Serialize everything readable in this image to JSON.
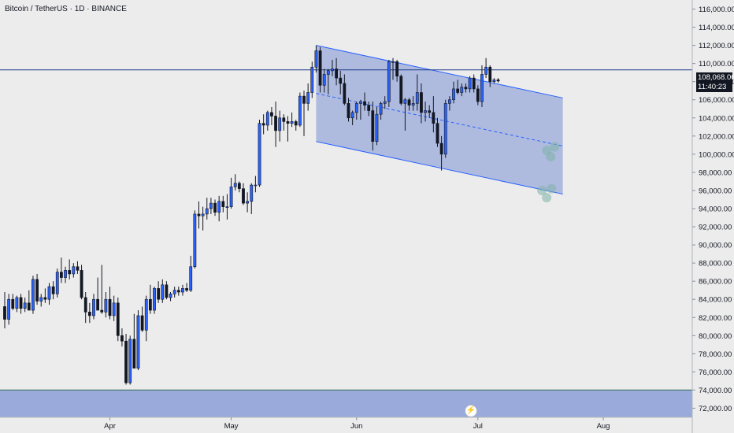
{
  "header": {
    "symbol_title": "Bitcoin / TetherUS · 1D · BINANCE"
  },
  "price_badge": {
    "price": "108,068.06",
    "countdown": "11:40:23"
  },
  "colors": {
    "background": "#ececec",
    "candle_up": "#2962ff",
    "candle_down": "#131722",
    "channel_fill": "#9aabdb",
    "channel_line": "#2962ff",
    "horizontal_line": "#1e3a8a",
    "zone_fill": "#9aabdb",
    "axis_text": "#131722"
  },
  "icons": {
    "bolt": "bolt-icon"
  },
  "chart_data": {
    "type": "candlestick",
    "y_axis": {
      "range": [
        71000,
        117000
      ],
      "ticks": [
        72000,
        74000,
        76000,
        78000,
        80000,
        82000,
        84000,
        86000,
        88000,
        90000,
        92000,
        94000,
        96000,
        98000,
        100000,
        102000,
        104000,
        106000,
        108000,
        110000,
        112000,
        114000,
        116000
      ],
      "tick_labels": [
        "72,000.00",
        "74,000.00",
        "76,000.00",
        "78,000.00",
        "80,000.00",
        "82,000.00",
        "84,000.00",
        "86,000.00",
        "88,000.00",
        "90,000.00",
        "92,000.00",
        "94,000.00",
        "96,000.00",
        "98,000.00",
        "100,000.00",
        "102,000.00",
        "104,000.00",
        "106,000.00",
        "108,000.00",
        "110,000.00",
        "112,000.00",
        "114,000.00",
        "116,000.00"
      ]
    },
    "x_axis": {
      "range": [
        "2025-03-06",
        "2025-08-23"
      ],
      "ticks": [
        {
          "date": "2025-04-01",
          "label": "Apr"
        },
        {
          "date": "2025-05-01",
          "label": "May"
        },
        {
          "date": "2025-06-01",
          "label": "Jun"
        },
        {
          "date": "2025-07-01",
          "label": "Jul"
        },
        {
          "date": "2025-08-01",
          "label": "Aug"
        }
      ]
    },
    "candles": [
      {
        "d": "2025-03-06",
        "o": 83200,
        "h": 84800,
        "l": 80800,
        "c": 81800
      },
      {
        "d": "2025-03-07",
        "o": 81800,
        "h": 84600,
        "l": 81200,
        "c": 84000
      },
      {
        "d": "2025-03-08",
        "o": 84000,
        "h": 84600,
        "l": 82800,
        "c": 83000
      },
      {
        "d": "2025-03-09",
        "o": 83000,
        "h": 84400,
        "l": 82600,
        "c": 84200
      },
      {
        "d": "2025-03-10",
        "o": 84200,
        "h": 84600,
        "l": 82400,
        "c": 83000
      },
      {
        "d": "2025-03-11",
        "o": 83000,
        "h": 84200,
        "l": 82600,
        "c": 83600
      },
      {
        "d": "2025-03-12",
        "o": 83600,
        "h": 85000,
        "l": 82800,
        "c": 82800
      },
      {
        "d": "2025-03-13",
        "o": 82800,
        "h": 86600,
        "l": 82400,
        "c": 86200
      },
      {
        "d": "2025-03-14",
        "o": 86200,
        "h": 86800,
        "l": 83400,
        "c": 83800
      },
      {
        "d": "2025-03-15",
        "o": 83800,
        "h": 84600,
        "l": 83200,
        "c": 84200
      },
      {
        "d": "2025-03-16",
        "o": 84200,
        "h": 85200,
        "l": 83600,
        "c": 84000
      },
      {
        "d": "2025-03-17",
        "o": 84000,
        "h": 85800,
        "l": 83400,
        "c": 85400
      },
      {
        "d": "2025-03-18",
        "o": 85400,
        "h": 86000,
        "l": 84000,
        "c": 84600
      },
      {
        "d": "2025-03-19",
        "o": 84600,
        "h": 87400,
        "l": 84200,
        "c": 87000
      },
      {
        "d": "2025-03-20",
        "o": 87000,
        "h": 88600,
        "l": 85800,
        "c": 86400
      },
      {
        "d": "2025-03-21",
        "o": 86400,
        "h": 87600,
        "l": 85800,
        "c": 87200
      },
      {
        "d": "2025-03-22",
        "o": 87200,
        "h": 88400,
        "l": 86200,
        "c": 86800
      },
      {
        "d": "2025-03-23",
        "o": 86800,
        "h": 88000,
        "l": 86400,
        "c": 87600
      },
      {
        "d": "2025-03-24",
        "o": 87600,
        "h": 88200,
        "l": 86800,
        "c": 87200
      },
      {
        "d": "2025-03-25",
        "o": 87200,
        "h": 87800,
        "l": 84000,
        "c": 84200
      },
      {
        "d": "2025-03-26",
        "o": 84200,
        "h": 84800,
        "l": 81400,
        "c": 82600
      },
      {
        "d": "2025-03-27",
        "o": 82600,
        "h": 83600,
        "l": 81400,
        "c": 82200
      },
      {
        "d": "2025-03-28",
        "o": 82200,
        "h": 84600,
        "l": 81800,
        "c": 84000
      },
      {
        "d": "2025-03-29",
        "o": 84000,
        "h": 86400,
        "l": 82800,
        "c": 82800
      },
      {
        "d": "2025-03-30",
        "o": 82800,
        "h": 87800,
        "l": 82400,
        "c": 82600
      },
      {
        "d": "2025-03-31",
        "o": 82600,
        "h": 84800,
        "l": 82000,
        "c": 84000
      },
      {
        "d": "2025-04-01",
        "o": 84000,
        "h": 85400,
        "l": 81800,
        "c": 82200
      },
      {
        "d": "2025-04-02",
        "o": 82200,
        "h": 84400,
        "l": 81600,
        "c": 83600
      },
      {
        "d": "2025-04-03",
        "o": 83600,
        "h": 84200,
        "l": 79400,
        "c": 80000
      },
      {
        "d": "2025-04-04",
        "o": 80000,
        "h": 80800,
        "l": 78800,
        "c": 79400
      },
      {
        "d": "2025-04-05",
        "o": 79400,
        "h": 80200,
        "l": 74600,
        "c": 74800
      },
      {
        "d": "2025-04-06",
        "o": 74800,
        "h": 80000,
        "l": 74600,
        "c": 79600
      },
      {
        "d": "2025-04-07",
        "o": 79600,
        "h": 82400,
        "l": 76400,
        "c": 76400
      },
      {
        "d": "2025-04-08",
        "o": 76400,
        "h": 82800,
        "l": 76200,
        "c": 82200
      },
      {
        "d": "2025-04-09",
        "o": 82200,
        "h": 83200,
        "l": 80400,
        "c": 80600
      },
      {
        "d": "2025-04-10",
        "o": 80600,
        "h": 84400,
        "l": 79400,
        "c": 84000
      },
      {
        "d": "2025-04-11",
        "o": 84000,
        "h": 85600,
        "l": 82400,
        "c": 82800
      },
      {
        "d": "2025-04-12",
        "o": 82800,
        "h": 85400,
        "l": 82400,
        "c": 85200
      },
      {
        "d": "2025-04-13",
        "o": 85200,
        "h": 86000,
        "l": 83600,
        "c": 84000
      },
      {
        "d": "2025-04-14",
        "o": 84000,
        "h": 86200,
        "l": 83600,
        "c": 85600
      },
      {
        "d": "2025-04-15",
        "o": 85600,
        "h": 86000,
        "l": 84000,
        "c": 84200
      },
      {
        "d": "2025-04-16",
        "o": 84200,
        "h": 84800,
        "l": 83800,
        "c": 84600
      },
      {
        "d": "2025-04-17",
        "o": 84600,
        "h": 85400,
        "l": 84200,
        "c": 85000
      },
      {
        "d": "2025-04-18",
        "o": 85000,
        "h": 85400,
        "l": 84400,
        "c": 84800
      },
      {
        "d": "2025-04-19",
        "o": 84800,
        "h": 85600,
        "l": 84400,
        "c": 85200
      },
      {
        "d": "2025-04-20",
        "o": 85200,
        "h": 85800,
        "l": 84800,
        "c": 85000
      },
      {
        "d": "2025-04-21",
        "o": 85000,
        "h": 88800,
        "l": 84800,
        "c": 87600
      },
      {
        "d": "2025-04-22",
        "o": 87600,
        "h": 93800,
        "l": 87400,
        "c": 93400
      },
      {
        "d": "2025-04-23",
        "o": 93400,
        "h": 94800,
        "l": 91800,
        "c": 93200
      },
      {
        "d": "2025-04-24",
        "o": 93200,
        "h": 94200,
        "l": 91600,
        "c": 93400
      },
      {
        "d": "2025-04-25",
        "o": 93400,
        "h": 95200,
        "l": 92800,
        "c": 94000
      },
      {
        "d": "2025-04-26",
        "o": 94000,
        "h": 95200,
        "l": 93400,
        "c": 94600
      },
      {
        "d": "2025-04-27",
        "o": 94600,
        "h": 95000,
        "l": 93200,
        "c": 93600
      },
      {
        "d": "2025-04-28",
        "o": 93600,
        "h": 95400,
        "l": 92600,
        "c": 94800
      },
      {
        "d": "2025-04-29",
        "o": 94800,
        "h": 95400,
        "l": 93600,
        "c": 94200
      },
      {
        "d": "2025-04-30",
        "o": 94200,
        "h": 95600,
        "l": 92800,
        "c": 94200
      },
      {
        "d": "2025-05-01",
        "o": 94200,
        "h": 97400,
        "l": 94000,
        "c": 96400
      },
      {
        "d": "2025-05-02",
        "o": 96400,
        "h": 97800,
        "l": 96000,
        "c": 96800
      },
      {
        "d": "2025-05-03",
        "o": 96800,
        "h": 97000,
        "l": 95800,
        "c": 96200
      },
      {
        "d": "2025-05-04",
        "o": 96200,
        "h": 96800,
        "l": 94400,
        "c": 94600
      },
      {
        "d": "2025-05-05",
        "o": 94600,
        "h": 95800,
        "l": 93600,
        "c": 94800
      },
      {
        "d": "2025-05-06",
        "o": 94800,
        "h": 96800,
        "l": 93400,
        "c": 96600
      },
      {
        "d": "2025-05-07",
        "o": 96600,
        "h": 97600,
        "l": 95800,
        "c": 96600
      },
      {
        "d": "2025-05-08",
        "o": 96600,
        "h": 103800,
        "l": 96400,
        "c": 103400
      },
      {
        "d": "2025-05-09",
        "o": 103400,
        "h": 104400,
        "l": 102200,
        "c": 103200
      },
      {
        "d": "2025-05-10",
        "o": 103200,
        "h": 104800,
        "l": 102600,
        "c": 104600
      },
      {
        "d": "2025-05-11",
        "o": 104600,
        "h": 105200,
        "l": 103200,
        "c": 104200
      },
      {
        "d": "2025-05-12",
        "o": 104200,
        "h": 105800,
        "l": 100800,
        "c": 102600
      },
      {
        "d": "2025-05-13",
        "o": 102600,
        "h": 104800,
        "l": 101400,
        "c": 104000
      },
      {
        "d": "2025-05-14",
        "o": 104000,
        "h": 104400,
        "l": 102600,
        "c": 103600
      },
      {
        "d": "2025-05-15",
        "o": 103600,
        "h": 104200,
        "l": 101400,
        "c": 103400
      },
      {
        "d": "2025-05-16",
        "o": 103400,
        "h": 104600,
        "l": 103000,
        "c": 103600
      },
      {
        "d": "2025-05-17",
        "o": 103600,
        "h": 103800,
        "l": 102600,
        "c": 103200
      },
      {
        "d": "2025-05-18",
        "o": 103200,
        "h": 106800,
        "l": 103000,
        "c": 106400
      },
      {
        "d": "2025-05-19",
        "o": 106400,
        "h": 107000,
        "l": 102000,
        "c": 105600
      },
      {
        "d": "2025-05-20",
        "o": 105600,
        "h": 107800,
        "l": 104800,
        "c": 106800
      },
      {
        "d": "2025-05-21",
        "o": 106800,
        "h": 110200,
        "l": 106200,
        "c": 109600
      },
      {
        "d": "2025-05-22",
        "o": 109600,
        "h": 112000,
        "l": 109000,
        "c": 111400
      },
      {
        "d": "2025-05-23",
        "o": 111400,
        "h": 111800,
        "l": 106800,
        "c": 107600
      },
      {
        "d": "2025-05-24",
        "o": 107600,
        "h": 109400,
        "l": 106800,
        "c": 108800
      },
      {
        "d": "2025-05-25",
        "o": 108800,
        "h": 109400,
        "l": 106600,
        "c": 109200
      },
      {
        "d": "2025-05-26",
        "o": 109200,
        "h": 110400,
        "l": 108600,
        "c": 109400
      },
      {
        "d": "2025-05-27",
        "o": 109400,
        "h": 110600,
        "l": 107600,
        "c": 108400
      },
      {
        "d": "2025-05-28",
        "o": 108400,
        "h": 109200,
        "l": 106600,
        "c": 107800
      },
      {
        "d": "2025-05-29",
        "o": 107800,
        "h": 108800,
        "l": 105400,
        "c": 105600
      },
      {
        "d": "2025-05-30",
        "o": 105600,
        "h": 106200,
        "l": 103600,
        "c": 104000
      },
      {
        "d": "2025-05-31",
        "o": 104000,
        "h": 104800,
        "l": 103200,
        "c": 104600
      },
      {
        "d": "2025-06-01",
        "o": 104600,
        "h": 105800,
        "l": 103800,
        "c": 105600
      },
      {
        "d": "2025-06-02",
        "o": 105600,
        "h": 106000,
        "l": 103800,
        "c": 105800
      },
      {
        "d": "2025-06-03",
        "o": 105800,
        "h": 106800,
        "l": 104800,
        "c": 105400
      },
      {
        "d": "2025-06-04",
        "o": 105400,
        "h": 105800,
        "l": 104200,
        "c": 104800
      },
      {
        "d": "2025-06-05",
        "o": 104800,
        "h": 105800,
        "l": 100400,
        "c": 101400
      },
      {
        "d": "2025-06-06",
        "o": 101400,
        "h": 105200,
        "l": 101000,
        "c": 104400
      },
      {
        "d": "2025-06-07",
        "o": 104400,
        "h": 105800,
        "l": 103800,
        "c": 105600
      },
      {
        "d": "2025-06-08",
        "o": 105600,
        "h": 106400,
        "l": 105000,
        "c": 105800
      },
      {
        "d": "2025-06-09",
        "o": 105800,
        "h": 110400,
        "l": 105200,
        "c": 110200
      },
      {
        "d": "2025-06-10",
        "o": 110200,
        "h": 110600,
        "l": 108200,
        "c": 110200
      },
      {
        "d": "2025-06-11",
        "o": 110200,
        "h": 110400,
        "l": 108000,
        "c": 108600
      },
      {
        "d": "2025-06-12",
        "o": 108600,
        "h": 108800,
        "l": 105400,
        "c": 105600
      },
      {
        "d": "2025-06-13",
        "o": 105600,
        "h": 106200,
        "l": 102600,
        "c": 106000
      },
      {
        "d": "2025-06-14",
        "o": 106000,
        "h": 106200,
        "l": 104800,
        "c": 105400
      },
      {
        "d": "2025-06-15",
        "o": 105400,
        "h": 106400,
        "l": 104800,
        "c": 105600
      },
      {
        "d": "2025-06-16",
        "o": 105600,
        "h": 108800,
        "l": 104800,
        "c": 106800
      },
      {
        "d": "2025-06-17",
        "o": 106800,
        "h": 107800,
        "l": 103400,
        "c": 104600
      },
      {
        "d": "2025-06-18",
        "o": 104600,
        "h": 105800,
        "l": 103600,
        "c": 104800
      },
      {
        "d": "2025-06-19",
        "o": 104800,
        "h": 105400,
        "l": 104000,
        "c": 104600
      },
      {
        "d": "2025-06-20",
        "o": 104600,
        "h": 106400,
        "l": 102400,
        "c": 103400
      },
      {
        "d": "2025-06-21",
        "o": 103400,
        "h": 104000,
        "l": 100800,
        "c": 101200
      },
      {
        "d": "2025-06-22",
        "o": 101200,
        "h": 102000,
        "l": 98200,
        "c": 100000
      },
      {
        "d": "2025-06-23",
        "o": 100000,
        "h": 106000,
        "l": 99600,
        "c": 105600
      },
      {
        "d": "2025-06-24",
        "o": 105600,
        "h": 106400,
        "l": 104800,
        "c": 106000
      },
      {
        "d": "2025-06-25",
        "o": 106000,
        "h": 108000,
        "l": 105600,
        "c": 107200
      },
      {
        "d": "2025-06-26",
        "o": 107200,
        "h": 108200,
        "l": 106600,
        "c": 106800
      },
      {
        "d": "2025-06-27",
        "o": 106800,
        "h": 107800,
        "l": 106400,
        "c": 107400
      },
      {
        "d": "2025-06-28",
        "o": 107400,
        "h": 107800,
        "l": 106800,
        "c": 107200
      },
      {
        "d": "2025-06-29",
        "o": 107200,
        "h": 108600,
        "l": 106800,
        "c": 108400
      },
      {
        "d": "2025-06-30",
        "o": 108400,
        "h": 108800,
        "l": 106800,
        "c": 107200
      },
      {
        "d": "2025-07-01",
        "o": 107200,
        "h": 107600,
        "l": 105400,
        "c": 105800
      },
      {
        "d": "2025-07-02",
        "o": 105800,
        "h": 109800,
        "l": 105200,
        "c": 108800
      },
      {
        "d": "2025-07-03",
        "o": 108800,
        "h": 110600,
        "l": 108400,
        "c": 109600
      },
      {
        "d": "2025-07-04",
        "o": 109600,
        "h": 109800,
        "l": 107400,
        "c": 108000
      },
      {
        "d": "2025-07-05",
        "o": 108000,
        "h": 108400,
        "l": 107800,
        "c": 108200
      },
      {
        "d": "2025-07-06",
        "o": 108200,
        "h": 108400,
        "l": 107900,
        "c": 108068.06
      }
    ],
    "horizontal_line": {
      "price": 109300
    },
    "channel": {
      "upper": [
        {
          "d": "2025-05-22",
          "p": 112000
        },
        {
          "d": "2025-07-22",
          "p": 106200
        }
      ],
      "lower": [
        {
          "d": "2025-05-22",
          "p": 101400
        },
        {
          "d": "2025-07-22",
          "p": 95600
        }
      ]
    },
    "zone": {
      "from": 71000,
      "to": 74000
    },
    "grid": false,
    "legend": "none"
  }
}
